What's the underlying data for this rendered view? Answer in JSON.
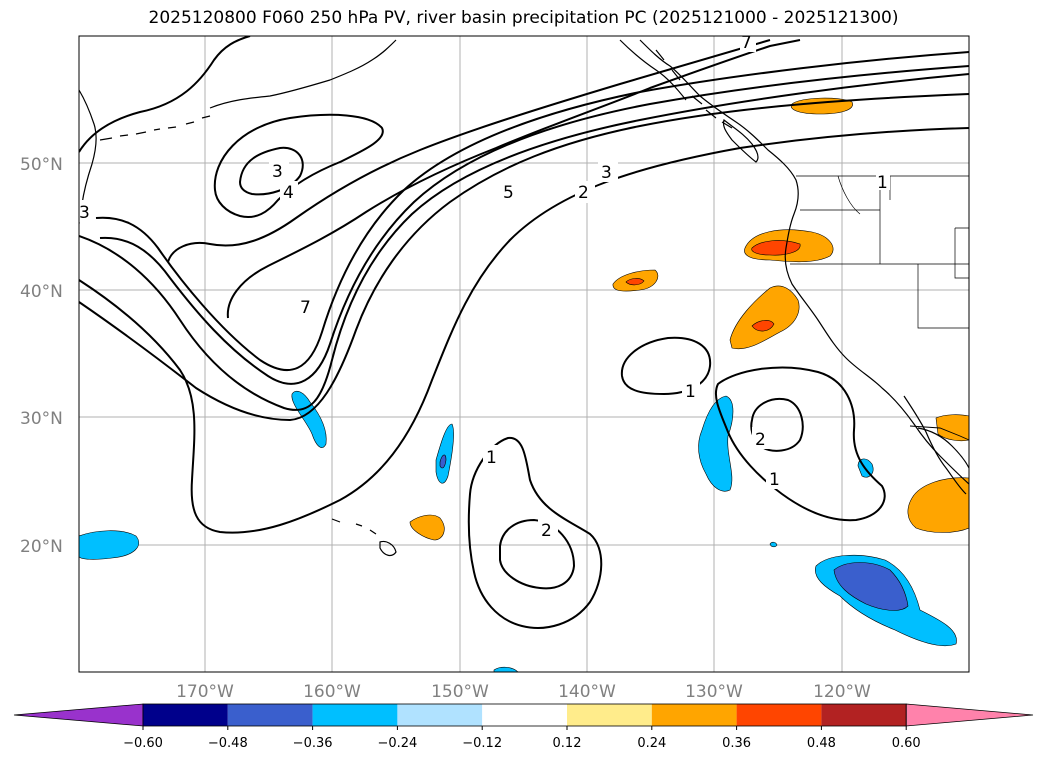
{
  "title": "2025120800 F060 250 hPa PV, river basin precipitation PC (2025121000 - 2025121300)",
  "lat_labels": [
    "50°N",
    "40°N",
    "30°N",
    "20°N"
  ],
  "lon_labels": [
    "170°W",
    "160°W",
    "150°W",
    "140°W",
    "130°W",
    "120°W"
  ],
  "colorbar": {
    "ticks": [
      "−0.60",
      "−0.48",
      "−0.36",
      "−0.24",
      "−0.12",
      "0.12",
      "0.24",
      "0.36",
      "0.48",
      "0.60"
    ],
    "colors": [
      "#9932cc",
      "#00008b",
      "#3a5fcd",
      "#00bfff",
      "#b0e2ff",
      "#ffffff",
      "#ffec8b",
      "#ffa500",
      "#ff4500",
      "#b22222",
      "#ff82ab"
    ]
  },
  "contour_labels": [
    "3",
    "4",
    "7",
    "5",
    "2",
    "3",
    "1",
    "2",
    "1",
    "1",
    "2",
    "3",
    "7",
    "1"
  ],
  "shading_colors": {
    "orange": "#ffa500",
    "red": "#ff4500",
    "cyan": "#00bfff",
    "blue": "#3a5fcd"
  }
}
